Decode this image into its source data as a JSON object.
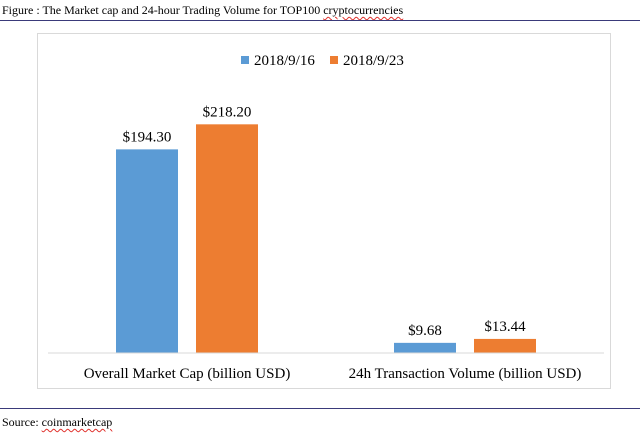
{
  "caption": {
    "prefix": "Figure : The Market cap and 24-hour Trading Volume for TOP100 ",
    "underlined": "cryptocurrencies"
  },
  "source": {
    "prefix": "Source: ",
    "underlined": "coinmarketcap"
  },
  "chart_data": {
    "type": "bar",
    "categories": [
      "Overall Market Cap (billion USD)",
      "24h Transaction Volume (billion USD)"
    ],
    "series": [
      {
        "name": "2018/9/16",
        "values": [
          194.3,
          9.68
        ],
        "labels": [
          "$194.30",
          "$9.68"
        ],
        "color": "#5b9bd5"
      },
      {
        "name": "2018/9/23",
        "values": [
          218.2,
          13.44
        ],
        "labels": [
          "$218.20",
          "$13.44"
        ],
        "color": "#ed7d31"
      }
    ],
    "ylim": [
      0,
      250
    ],
    "grid": false,
    "legend": "top-center"
  }
}
